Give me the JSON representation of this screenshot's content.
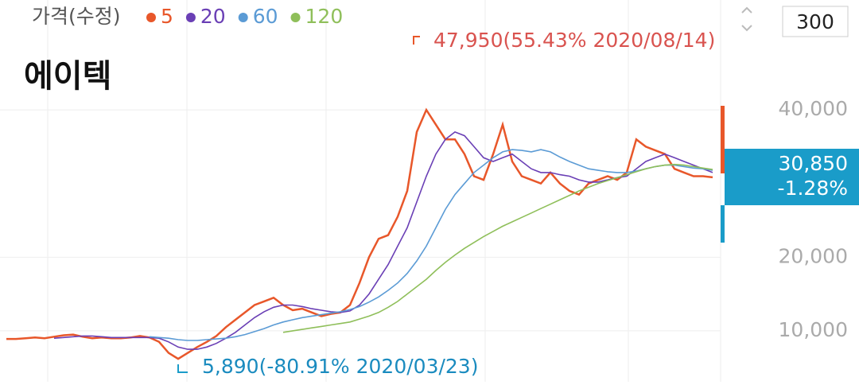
{
  "chart_data": {
    "type": "line",
    "title": "에이텍",
    "legend_title": "가격(수정)",
    "period": "300",
    "ylim": [
      3080,
      54920
    ],
    "yticks": [
      {
        "value": 10000,
        "label": "10,000"
      },
      {
        "value": 20000,
        "label": "20,000"
      },
      {
        "value": 40000,
        "label": "40,000"
      }
    ],
    "series": [
      {
        "name": "5",
        "color": "#e8572a",
        "values": [
          8900,
          8900,
          9000,
          9100,
          9000,
          9200,
          9400,
          9500,
          9200,
          9000,
          9100,
          9000,
          9000,
          9100,
          9300,
          9100,
          8500,
          7000,
          6200,
          7000,
          7800,
          8500,
          9300,
          10500,
          11500,
          12500,
          13500,
          14000,
          14500,
          13500,
          12800,
          13000,
          12500,
          12000,
          12300,
          12500,
          13500,
          16500,
          20000,
          22500,
          23000,
          25500,
          29000,
          37000,
          40000,
          38000,
          36000,
          36000,
          34000,
          31000,
          30500,
          34000,
          38000,
          33000,
          31000,
          30500,
          30000,
          31500,
          30000,
          29000,
          28500,
          30000,
          30500,
          31000,
          30500,
          31500,
          36000,
          35000,
          34500,
          34000,
          32000,
          31500,
          31000,
          31000,
          30850
        ]
      },
      {
        "name": "20",
        "color": "#6a3fb5",
        "values": [
          null,
          null,
          null,
          null,
          null,
          9000,
          9100,
          9200,
          9300,
          9300,
          9200,
          9100,
          9100,
          9100,
          9100,
          9100,
          9000,
          8500,
          7800,
          7500,
          7500,
          7800,
          8300,
          9000,
          9800,
          10800,
          11800,
          12600,
          13200,
          13500,
          13500,
          13300,
          13000,
          12800,
          12600,
          12500,
          12700,
          13500,
          15000,
          17000,
          19000,
          21500,
          24000,
          27500,
          31000,
          34000,
          36000,
          37000,
          36500,
          35000,
          33500,
          33000,
          33500,
          34000,
          33000,
          32000,
          31500,
          31500,
          31200,
          31000,
          30500,
          30200,
          30200,
          30500,
          30800,
          31000,
          32000,
          33000,
          33500,
          34000,
          33500,
          33000,
          32500,
          32000,
          31500
        ]
      },
      {
        "name": "60",
        "color": "#5b9bd5",
        "values": [
          null,
          null,
          null,
          null,
          null,
          null,
          null,
          null,
          null,
          null,
          null,
          null,
          null,
          null,
          null,
          9200,
          9100,
          9000,
          8800,
          8700,
          8700,
          8800,
          8900,
          9000,
          9200,
          9500,
          9900,
          10300,
          10800,
          11200,
          11500,
          11800,
          12000,
          12200,
          12400,
          12600,
          12900,
          13300,
          13900,
          14600,
          15500,
          16500,
          17800,
          19500,
          21500,
          24000,
          26500,
          28500,
          30000,
          31500,
          32500,
          33500,
          34300,
          34600,
          34500,
          34300,
          34600,
          34300,
          33600,
          33000,
          32500,
          32000,
          31800,
          31600,
          31500,
          31500,
          31700,
          32000,
          32300,
          32500,
          32500,
          32300,
          32100,
          32000,
          31800
        ]
      },
      {
        "name": "120",
        "color": "#8fbf5a",
        "values": [
          null,
          null,
          null,
          null,
          null,
          null,
          null,
          null,
          null,
          null,
          null,
          null,
          null,
          null,
          null,
          null,
          null,
          null,
          null,
          null,
          null,
          null,
          null,
          null,
          null,
          null,
          null,
          null,
          null,
          9800,
          10000,
          10200,
          10400,
          10600,
          10800,
          11000,
          11200,
          11600,
          12000,
          12500,
          13200,
          14000,
          15000,
          16000,
          17000,
          18200,
          19300,
          20300,
          21200,
          22000,
          22800,
          23500,
          24200,
          24800,
          25400,
          26000,
          26600,
          27200,
          27800,
          28400,
          29000,
          29500,
          30000,
          30400,
          30800,
          31200,
          31600,
          32000,
          32300,
          32500,
          32600,
          32500,
          32300,
          32100,
          31900
        ]
      }
    ],
    "annotations": {
      "high": "47,950(55.43% 2020/08/14)",
      "low": "5,890(-80.91% 2020/03/23)",
      "last_price": "30,850",
      "change": "-1.28%"
    }
  }
}
